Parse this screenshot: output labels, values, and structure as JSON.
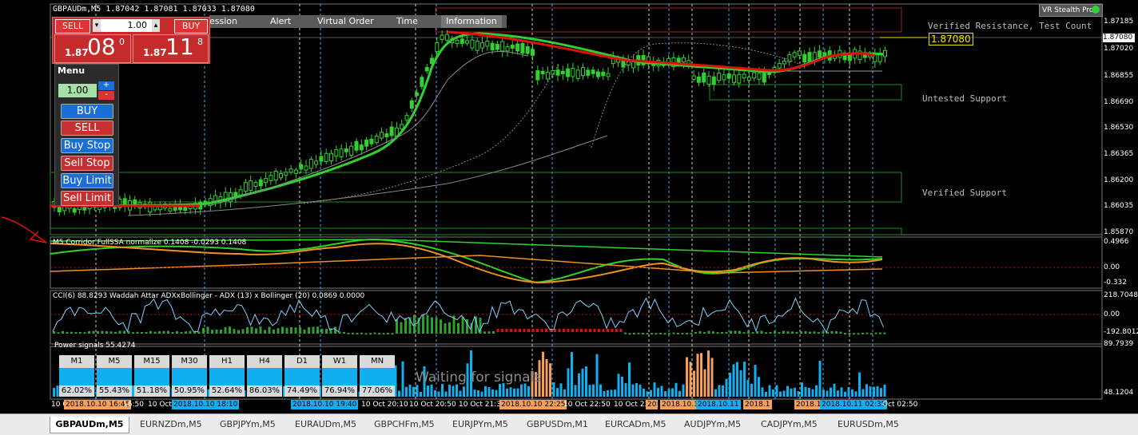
{
  "window": {
    "title": "GBPAUDm,M5  1.87042 1.87081 1.87033 1.87080",
    "vr_badge": "VR Stealth Pro"
  },
  "top_tabs": [
    "ession",
    "Alert",
    "Virtual Order",
    "Time",
    "Information"
  ],
  "trade_panel": {
    "sell_label": "SELL",
    "buy_label": "BUY",
    "lot": "1.00",
    "sell_price_small": "1.87",
    "sell_price_big": "08",
    "sell_price_sup": "0",
    "buy_price_small": "1.87",
    "buy_price_big": "11",
    "buy_price_sup": "8"
  },
  "menu": {
    "title": "Menu",
    "lot": "1.00",
    "plus": "+",
    "minus": "-",
    "buttons": [
      "BUY",
      "SELL",
      "Buy Stop",
      "Sell Stop",
      "Buy Limit",
      "Sell Limit"
    ]
  },
  "main_chart": {
    "price_axis": [
      "1.87185",
      "1.87080",
      "1.87020",
      "1.86855",
      "1.86690",
      "1.86530",
      "1.86365",
      "1.86200",
      "1.86035",
      "1.85870"
    ],
    "current_price": "1.87080",
    "zones": [
      "Verified Resistance, Test Count",
      "Untested Support",
      "Verified Support"
    ]
  },
  "indicators": {
    "corridor": {
      "label": "M5 Corridor FullSSA normalize 0.1408 -0.0293 0.1408",
      "axis": [
        "0.4966",
        "0.00",
        "-0.332"
      ]
    },
    "cci": {
      "label": "CCI(6) 88.8293  Waddah Attar ADXxBollinger - ADX (13) x Bollinger (20) 0.0869 0.0000",
      "axis": [
        "218.7048",
        "0.00",
        "-192.8012"
      ]
    },
    "power": {
      "label": "Power signals 55.4274",
      "axis": [
        "89.7939",
        "48.1204"
      ],
      "waiting": "Waiting for signals"
    }
  },
  "timeframes": [
    {
      "tf": "M1",
      "pct": "62.02%"
    },
    {
      "tf": "M5",
      "pct": "55.43%"
    },
    {
      "tf": "M15",
      "pct": "51.18%"
    },
    {
      "tf": "M30",
      "pct": "50.95%"
    },
    {
      "tf": "H1",
      "pct": "52.64%"
    },
    {
      "tf": "H4",
      "pct": "86.03%"
    },
    {
      "tf": "D1",
      "pct": "74.49%"
    },
    {
      "tf": "W1",
      "pct": "76.94%"
    },
    {
      "tf": "MN",
      "pct": "77.06%"
    }
  ],
  "time_axis": {
    "plain": [
      "10 O",
      "16:50",
      "10 Oct",
      "10 Oct 20:10",
      "10 Oct 20:50",
      "10 Oct 21:3",
      "10 Oct 22:50",
      "10 Oct 23",
      "Oct 02:50"
    ],
    "highlighted": [
      "2018.10.10 16:45",
      "2018.10.10 18:10",
      "2018.10.10 19:40",
      "2018.10.10 22:25",
      "20",
      "2018.10.11",
      "2018.10.11",
      "2018.1",
      "2018.1",
      "2018.10.11 02:35"
    ]
  },
  "symbol_tabs": [
    "GBPAUDm,M5",
    "EURNZDm,M5",
    "GBPJPYm,M5",
    "EURAUDm,M5",
    "GBPCHFm,M5",
    "EURJPYm,M5",
    "GBPUSDm,M1",
    "EURCADm,M5",
    "AUDJPYm,M5",
    "CADJPYm,M5",
    "EURUSDm,M5"
  ],
  "colors": {
    "accent_red": "#c62b2b",
    "bull": "#2fd12f",
    "signal_blue": "#10b0f0",
    "signal_orange": "#f5a05a",
    "zone_green": "#1f8c1f",
    "zone_red": "#a02020"
  }
}
